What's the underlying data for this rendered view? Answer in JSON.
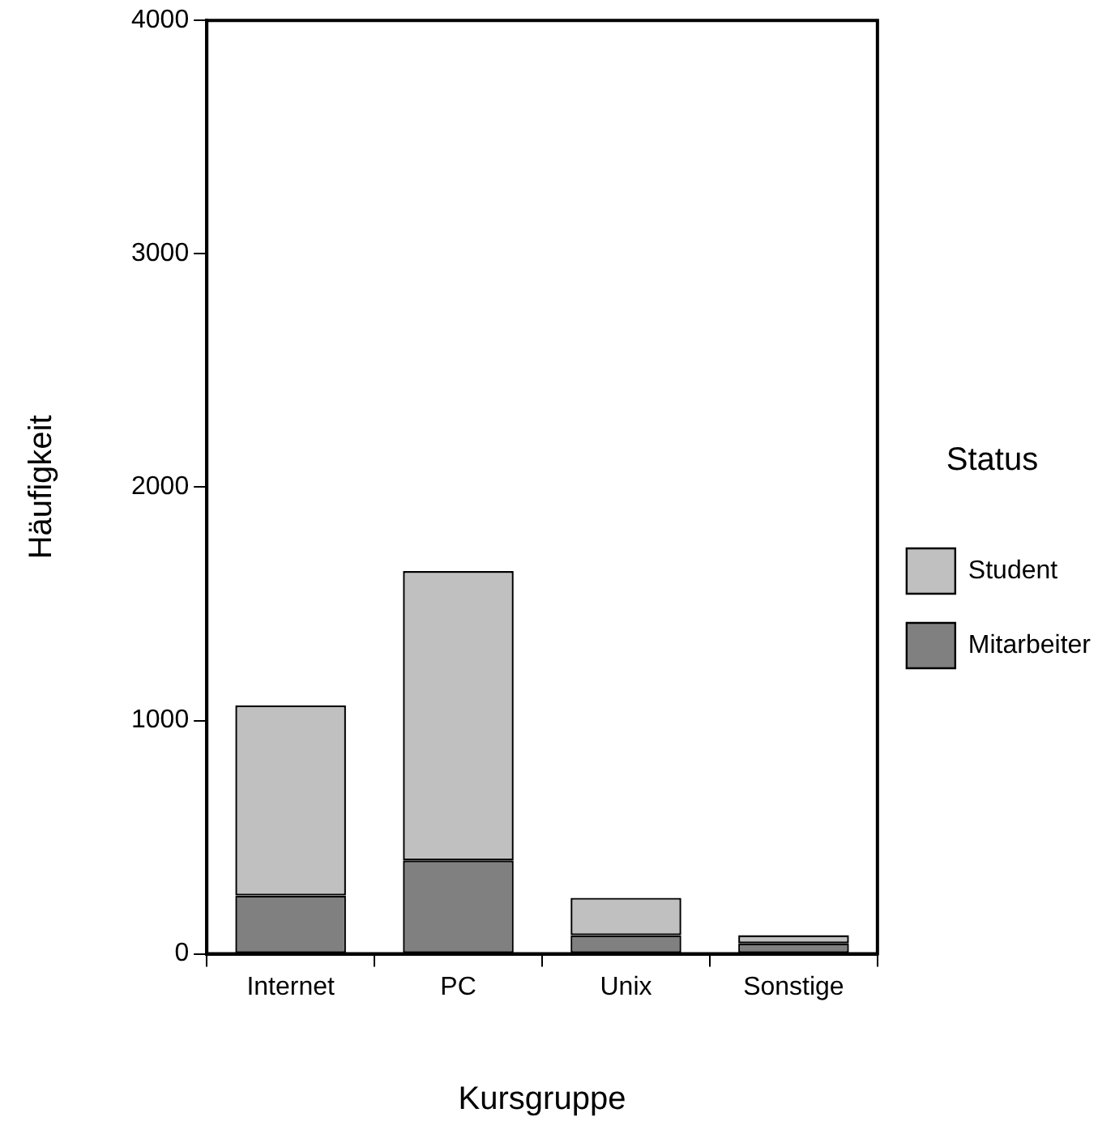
{
  "chart_data": {
    "type": "bar",
    "stacked": true,
    "xlabel": "Kursgruppe",
    "ylabel": "Häufigkeit",
    "legend_title": "Status",
    "legend": "right",
    "grid": false,
    "categories": [
      "Internet",
      "PC",
      "Unix",
      "Sonstige"
    ],
    "series": [
      {
        "name": "Mitarbeiter",
        "color": "#808080",
        "values": [
          250,
          400,
          80,
          45
        ]
      },
      {
        "name": "Student",
        "color": "#c0c0c0",
        "values": [
          815,
          1240,
          160,
          35
        ]
      }
    ],
    "ylim": [
      0,
      4000
    ],
    "yticks": [
      0,
      1000,
      2000,
      3000,
      4000
    ]
  }
}
